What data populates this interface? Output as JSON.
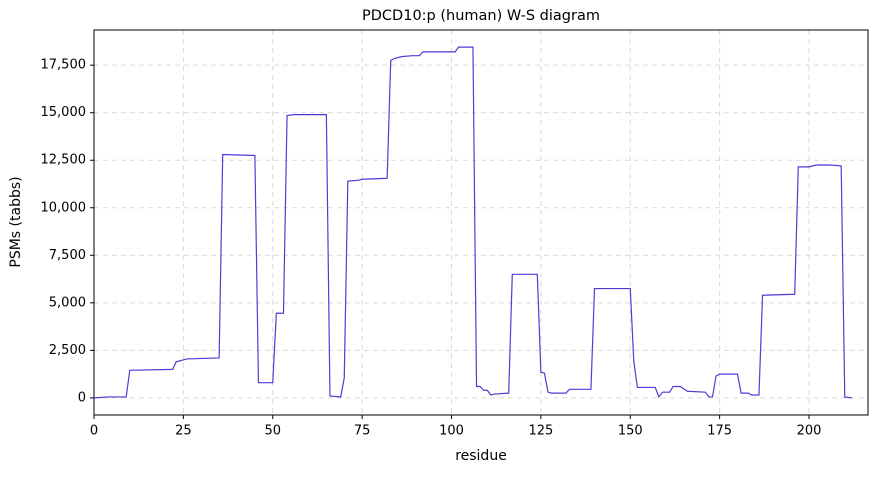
{
  "chart_data": {
    "type": "line",
    "title": "PDCD10:p (human) W-S diagram",
    "xlabel": "residue",
    "ylabel": "PSMs (tabbs)",
    "grid": true,
    "xlim": [
      0,
      216.5
    ],
    "ylim": [
      -900,
      19350
    ],
    "xticks": [
      0,
      25,
      50,
      75,
      100,
      125,
      150,
      175,
      200
    ],
    "yticks": [
      0,
      {
        "value": 2500,
        "label": "2,500"
      },
      {
        "value": 5000,
        "label": "5,000"
      },
      {
        "value": 7500,
        "label": "7,500"
      },
      {
        "value": 10000,
        "label": "10,000"
      },
      {
        "value": 12500,
        "label": "12,500"
      },
      {
        "value": 15000,
        "label": "15,000"
      },
      {
        "value": 17500,
        "label": "17,500"
      }
    ],
    "series": [
      {
        "color": "#5b35d5",
        "x": [
          0,
          4,
          9,
          10,
          22,
          23,
          26,
          35,
          36,
          45,
          46,
          50,
          51,
          53,
          54,
          56,
          65,
          66,
          69,
          70,
          71,
          74,
          75,
          82,
          83,
          84,
          86,
          89,
          91,
          92,
          101,
          102,
          106,
          107,
          108,
          109,
          110,
          111,
          112,
          116,
          117,
          124,
          125,
          126,
          127,
          128,
          132,
          133,
          139,
          140,
          150,
          151,
          152,
          157,
          158,
          159,
          161,
          162,
          164,
          166,
          171,
          172,
          173,
          174,
          175,
          180,
          181,
          183,
          184,
          186,
          187,
          196,
          197,
          200,
          202,
          206,
          209,
          210,
          212
        ],
        "values": [
          0,
          50,
          50,
          1450,
          1500,
          1900,
          2050,
          2100,
          12800,
          12750,
          800,
          800,
          4450,
          4450,
          14850,
          14900,
          14900,
          100,
          50,
          1050,
          11400,
          11450,
          11500,
          11550,
          17750,
          17850,
          17950,
          18000,
          18000,
          18200,
          18200,
          18450,
          18450,
          600,
          600,
          400,
          400,
          150,
          200,
          250,
          6500,
          6500,
          1350,
          1300,
          300,
          250,
          250,
          450,
          450,
          5750,
          5750,
          1900,
          550,
          550,
          50,
          300,
          300,
          600,
          600,
          350,
          300,
          50,
          50,
          1150,
          1250,
          1250,
          250,
          250,
          150,
          150,
          5400,
          5450,
          12150,
          12150,
          12250,
          12250,
          12200,
          50,
          0
        ]
      }
    ]
  }
}
